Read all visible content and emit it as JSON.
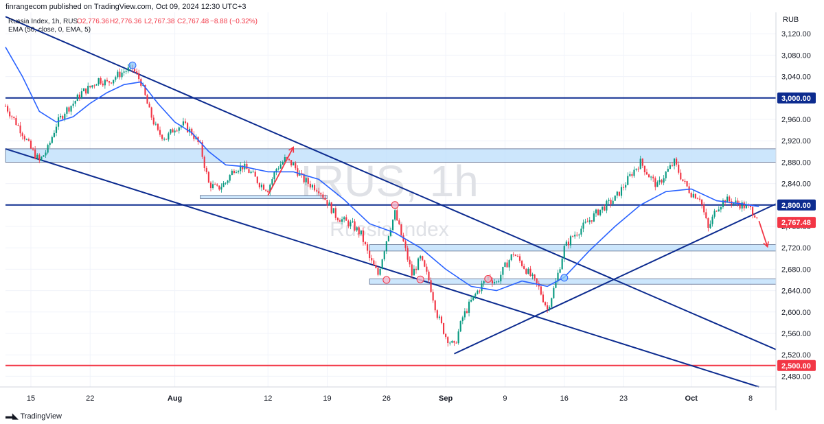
{
  "header": {
    "publish_line": "finrangecom published on TradingView.com, Oct 09, 2024 12:30 UTC+3",
    "symbol_line": "Russia Index, 1h, RUS",
    "ohlc": {
      "open": "O2,776.36",
      "high": "H2,776.36",
      "low": "L2,767.38",
      "close": "C2,767.48",
      "change": "−8.88 (−0.32%)"
    },
    "indicator_line": "EMA (50, close, 0, EMA, 5)"
  },
  "watermark": {
    "symbol": "IRUS, 1h",
    "name": "Russia Index"
  },
  "footer": {
    "brand": "TradingView"
  },
  "colors": {
    "up": "#089981",
    "down": "#f23645",
    "ema": "#2962ff",
    "navy": "#0c2b8f",
    "support_red": "#f23645",
    "zone_fill": "#bbdefb",
    "last_price_bg": "#f23645"
  },
  "chart_data": {
    "type": "candlestick",
    "title": "Russia Index, 1h, RUS",
    "currency": "RUB",
    "ylim": [
      2460,
      3160
    ],
    "y_ticks": [
      3120,
      3080,
      3040,
      3000,
      2960,
      2920,
      2880,
      2840,
      2800,
      2760,
      2720,
      2680,
      2640,
      2600,
      2560,
      2520,
      2480
    ],
    "y_tick_labels": [
      "3,120.00",
      "3,080.00",
      "3,040.00",
      "3,000.00",
      "2,960.00",
      "2,920.00",
      "2,880.00",
      "2,840.00",
      "2,800.00",
      "2,760.00",
      "2,720.00",
      "2,680.00",
      "2,640.00",
      "2,600.00",
      "2,560.00",
      "2,520.00",
      "2,480.00"
    ],
    "x_range": [
      "2024-07-12",
      "2024-10-11"
    ],
    "x_ticks": [
      {
        "date": "2024-07-15",
        "label": "15"
      },
      {
        "date": "2024-07-22",
        "label": "22"
      },
      {
        "date": "2024-08-01",
        "label": "Aug"
      },
      {
        "date": "2024-08-12",
        "label": "12"
      },
      {
        "date": "2024-08-19",
        "label": "19"
      },
      {
        "date": "2024-08-26",
        "label": "26"
      },
      {
        "date": "2024-09-02",
        "label": "Sep"
      },
      {
        "date": "2024-09-09",
        "label": "9"
      },
      {
        "date": "2024-09-16",
        "label": "16"
      },
      {
        "date": "2024-09-23",
        "label": "23"
      },
      {
        "date": "2024-10-01",
        "label": "Oct"
      },
      {
        "date": "2024-10-08",
        "label": "8"
      }
    ],
    "grid": true,
    "price_path": [
      [
        "2024-07-12",
        2985
      ],
      [
        "2024-07-13",
        2960
      ],
      [
        "2024-07-14",
        2935
      ],
      [
        "2024-07-15",
        2905
      ],
      [
        "2024-07-16",
        2882
      ],
      [
        "2024-07-17",
        2905
      ],
      [
        "2024-07-18",
        2950
      ],
      [
        "2024-07-19",
        2975
      ],
      [
        "2024-07-20",
        2990
      ],
      [
        "2024-07-21",
        3010
      ],
      [
        "2024-07-22",
        3020
      ],
      [
        "2024-07-23",
        3035
      ],
      [
        "2024-07-24",
        3028
      ],
      [
        "2024-07-25",
        3040
      ],
      [
        "2024-07-26",
        3050
      ],
      [
        "2024-07-27",
        3055
      ],
      [
        "2024-07-28",
        3030
      ],
      [
        "2024-07-29",
        2975
      ],
      [
        "2024-07-30",
        2935
      ],
      [
        "2024-07-31",
        2925
      ],
      [
        "2024-08-01",
        2945
      ],
      [
        "2024-08-02",
        2950
      ],
      [
        "2024-08-03",
        2935
      ],
      [
        "2024-08-04",
        2910
      ],
      [
        "2024-08-05",
        2840
      ],
      [
        "2024-08-06",
        2830
      ],
      [
        "2024-08-07",
        2842
      ],
      [
        "2024-08-08",
        2868
      ],
      [
        "2024-08-09",
        2872
      ],
      [
        "2024-08-10",
        2860
      ],
      [
        "2024-08-11",
        2840
      ],
      [
        "2024-08-12",
        2830
      ],
      [
        "2024-08-13",
        2868
      ],
      [
        "2024-08-14",
        2885
      ],
      [
        "2024-08-15",
        2875
      ],
      [
        "2024-08-16",
        2850
      ],
      [
        "2024-08-17",
        2838
      ],
      [
        "2024-08-18",
        2830
      ],
      [
        "2024-08-19",
        2805
      ],
      [
        "2024-08-20",
        2780
      ],
      [
        "2024-08-21",
        2770
      ],
      [
        "2024-08-22",
        2762
      ],
      [
        "2024-08-23",
        2745
      ],
      [
        "2024-08-24",
        2700
      ],
      [
        "2024-08-25",
        2670
      ],
      [
        "2024-08-26",
        2735
      ],
      [
        "2024-08-27",
        2785
      ],
      [
        "2024-08-28",
        2730
      ],
      [
        "2024-08-29",
        2670
      ],
      [
        "2024-08-30",
        2700
      ],
      [
        "2024-08-31",
        2660
      ],
      [
        "2024-09-01",
        2595
      ],
      [
        "2024-09-02",
        2555
      ],
      [
        "2024-09-03",
        2535
      ],
      [
        "2024-09-04",
        2590
      ],
      [
        "2024-09-05",
        2620
      ],
      [
        "2024-09-06",
        2645
      ],
      [
        "2024-09-07",
        2665
      ],
      [
        "2024-09-08",
        2655
      ],
      [
        "2024-09-09",
        2685
      ],
      [
        "2024-09-10",
        2710
      ],
      [
        "2024-09-11",
        2690
      ],
      [
        "2024-09-12",
        2668
      ],
      [
        "2024-09-13",
        2645
      ],
      [
        "2024-09-14",
        2605
      ],
      [
        "2024-09-15",
        2655
      ],
      [
        "2024-09-16",
        2720
      ],
      [
        "2024-09-17",
        2742
      ],
      [
        "2024-09-18",
        2756
      ],
      [
        "2024-09-19",
        2772
      ],
      [
        "2024-09-20",
        2788
      ],
      [
        "2024-09-21",
        2800
      ],
      [
        "2024-09-22",
        2812
      ],
      [
        "2024-09-23",
        2835
      ],
      [
        "2024-09-24",
        2860
      ],
      [
        "2024-09-25",
        2880
      ],
      [
        "2024-09-26",
        2855
      ],
      [
        "2024-09-27",
        2835
      ],
      [
        "2024-09-28",
        2860
      ],
      [
        "2024-09-29",
        2880
      ],
      [
        "2024-09-30",
        2845
      ],
      [
        "2024-10-01",
        2822
      ],
      [
        "2024-10-02",
        2815
      ],
      [
        "2024-10-03",
        2755
      ],
      [
        "2024-10-04",
        2795
      ],
      [
        "2024-10-05",
        2810
      ],
      [
        "2024-10-06",
        2805
      ],
      [
        "2024-10-07",
        2800
      ],
      [
        "2024-10-08",
        2792
      ],
      [
        "2024-10-09",
        2776
      ]
    ],
    "ema_50": [
      [
        "2024-07-12",
        3095
      ],
      [
        "2024-07-14",
        3040
      ],
      [
        "2024-07-16",
        2975
      ],
      [
        "2024-07-18",
        2955
      ],
      [
        "2024-07-20",
        2965
      ],
      [
        "2024-07-22",
        2990
      ],
      [
        "2024-07-24",
        3010
      ],
      [
        "2024-07-26",
        3025
      ],
      [
        "2024-07-28",
        3030
      ],
      [
        "2024-07-30",
        2990
      ],
      [
        "2024-08-01",
        2955
      ],
      [
        "2024-08-03",
        2935
      ],
      [
        "2024-08-05",
        2900
      ],
      [
        "2024-08-07",
        2875
      ],
      [
        "2024-08-09",
        2872
      ],
      [
        "2024-08-12",
        2862
      ],
      [
        "2024-08-15",
        2862
      ],
      [
        "2024-08-18",
        2848
      ],
      [
        "2024-08-21",
        2810
      ],
      [
        "2024-08-24",
        2765
      ],
      [
        "2024-08-27",
        2748
      ],
      [
        "2024-08-30",
        2720
      ],
      [
        "2024-09-02",
        2680
      ],
      [
        "2024-09-05",
        2648
      ],
      [
        "2024-09-08",
        2640
      ],
      [
        "2024-09-11",
        2658
      ],
      [
        "2024-09-14",
        2648
      ],
      [
        "2024-09-16",
        2665
      ],
      [
        "2024-09-19",
        2715
      ],
      [
        "2024-09-22",
        2760
      ],
      [
        "2024-09-25",
        2800
      ],
      [
        "2024-09-28",
        2825
      ],
      [
        "2024-10-01",
        2830
      ],
      [
        "2024-10-04",
        2808
      ],
      [
        "2024-10-07",
        2802
      ],
      [
        "2024-10-09",
        2797
      ]
    ],
    "last_price": 2767.48,
    "last_price_label": "2,767.48",
    "horizontal_levels": [
      {
        "price": 3000,
        "label": "3,000.00",
        "color": "#0c2b8f"
      },
      {
        "price": 2800,
        "label": "2,800.00",
        "color": "#0c2b8f"
      },
      {
        "price": 2500,
        "label": "2,500.00",
        "color": "#f23645"
      }
    ],
    "zones": [
      {
        "start": "2024-07-12",
        "end": "2024-10-11",
        "low": 2880,
        "high": 2905
      },
      {
        "start": "2024-08-04",
        "end": "2024-08-19",
        "low": 2812,
        "high": 2818
      },
      {
        "start": "2024-08-24",
        "end": "2024-10-11",
        "low": 2714,
        "high": 2726
      },
      {
        "start": "2024-08-24",
        "end": "2024-10-11",
        "low": 2652,
        "high": 2662
      }
    ],
    "trendlines": [
      {
        "from": [
          "2024-07-12",
          3152
        ],
        "to": [
          "2024-10-11",
          2530
        ]
      },
      {
        "from": [
          "2024-07-12",
          2905
        ],
        "to": [
          "2024-10-09",
          2460
        ]
      },
      {
        "from": [
          "2024-09-03",
          2522
        ],
        "to": [
          "2024-10-11",
          2802
        ]
      }
    ],
    "arrows": [
      {
        "from": [
          "2024-08-12",
          2818
        ],
        "to": [
          "2024-08-15",
          2908
        ]
      },
      {
        "from": [
          "2024-10-09",
          2770
        ],
        "to": [
          "2024-10-10",
          2722
        ]
      }
    ],
    "markers": [
      {
        "date": "2024-07-27",
        "price": 3061,
        "kind": "blue"
      },
      {
        "date": "2024-08-26",
        "price": 2660,
        "kind": "red"
      },
      {
        "date": "2024-08-27",
        "price": 2800,
        "kind": "red"
      },
      {
        "date": "2024-08-30",
        "price": 2661,
        "kind": "red"
      },
      {
        "date": "2024-09-07",
        "price": 2662,
        "kind": "red"
      },
      {
        "date": "2024-09-16",
        "price": 2664,
        "kind": "blue"
      }
    ]
  }
}
